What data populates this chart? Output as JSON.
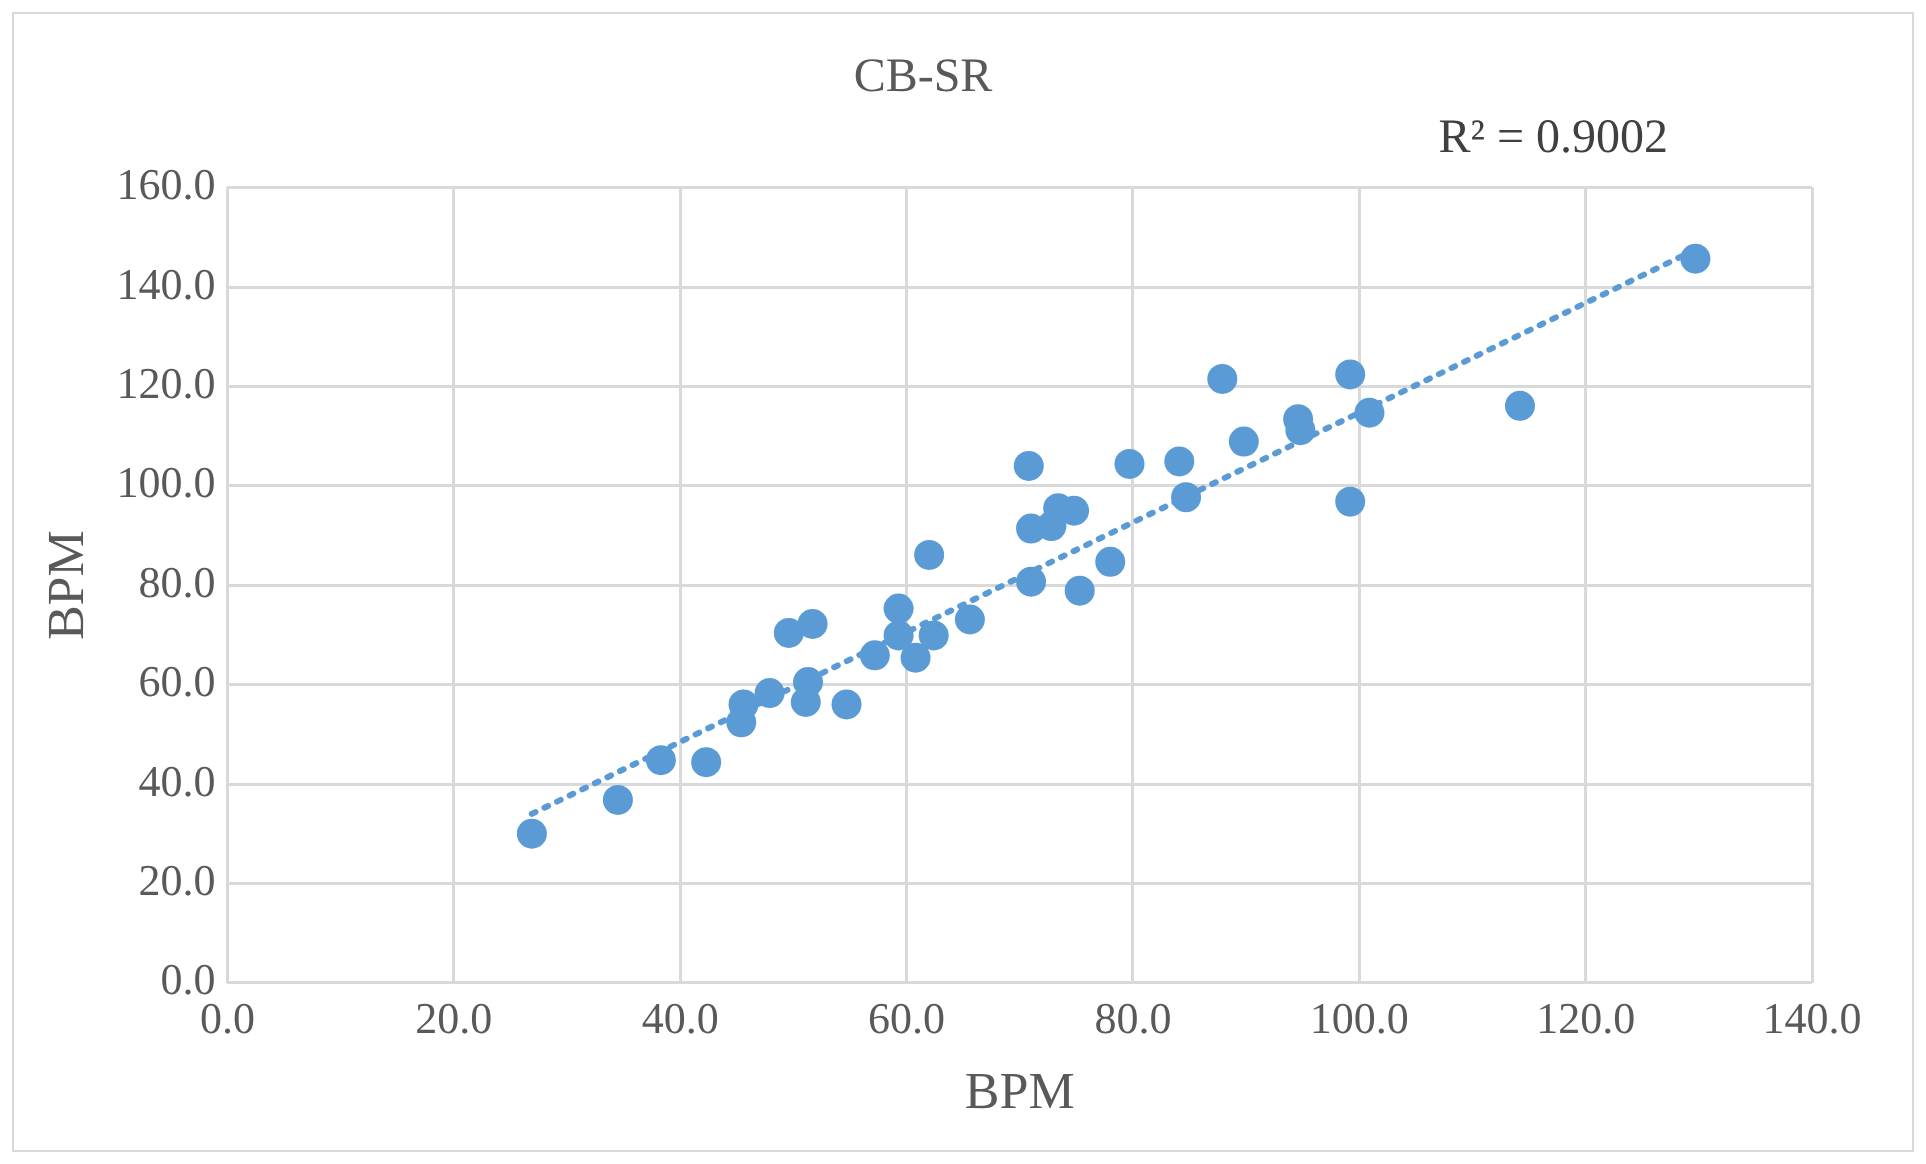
{
  "chart_data": {
    "type": "scatter",
    "title": "CB-SR",
    "xlabel": "BPM",
    "ylabel": "BPM",
    "annotations": [
      "R² = 0.9002"
    ],
    "xlim": [
      0,
      140
    ],
    "ylim": [
      0,
      160
    ],
    "xticks": [
      {
        "value": 0,
        "label": "0.0"
      },
      {
        "value": 20,
        "label": "20.0"
      },
      {
        "value": 40,
        "label": "40.0"
      },
      {
        "value": 60,
        "label": "60.0"
      },
      {
        "value": 80,
        "label": "80.0"
      },
      {
        "value": 100,
        "label": "100.0"
      },
      {
        "value": 120,
        "label": "120.0"
      },
      {
        "value": 140,
        "label": "140.0"
      }
    ],
    "yticks": [
      {
        "value": 0,
        "label": "0.0"
      },
      {
        "value": 20,
        "label": "20.0"
      },
      {
        "value": 40,
        "label": "40.0"
      },
      {
        "value": 60,
        "label": "60.0"
      },
      {
        "value": 80,
        "label": "80.0"
      },
      {
        "value": 100,
        "label": "100.0"
      },
      {
        "value": 120,
        "label": "120.0"
      },
      {
        "value": 140,
        "label": "140.0"
      },
      {
        "value": 160,
        "label": "160.0"
      }
    ],
    "grid": true,
    "legend": false,
    "marker": "circle",
    "series": [
      {
        "color": "#5b9bd5",
        "x": [
          26.9,
          34.5,
          38.3,
          42.3,
          45.4,
          45.6,
          47.9,
          49.6,
          51.7,
          51.3,
          51.1,
          54.7,
          57.2,
          59.3,
          59.3,
          60.8,
          62.0,
          62.4,
          65.6,
          70.8,
          71.0,
          71.0,
          72.8,
          73.4,
          74.8,
          75.3,
          78.0,
          79.7,
          84.1,
          84.7,
          87.9,
          89.8,
          94.6,
          94.8,
          99.2,
          99.2,
          100.9,
          114.2,
          129.7
        ],
        "values": [
          30.0,
          36.8,
          44.8,
          44.4,
          52.4,
          56.0,
          58.3,
          70.4,
          72.2,
          60.5,
          56.5,
          56.0,
          65.9,
          75.3,
          69.9,
          65.4,
          86.1,
          69.9,
          73.1,
          104.0,
          91.4,
          80.7,
          91.9,
          95.5,
          95.0,
          78.9,
          84.7,
          104.4,
          104.9,
          97.7,
          121.5,
          108.9,
          113.4,
          111.2,
          122.4,
          96.8,
          114.7,
          116.1,
          145.7
        ]
      },
      {
        "type": "line",
        "color": "#5b9bd5",
        "line_style": "dotted",
        "marker": "none",
        "x": [
          26.9,
          129.7
        ],
        "values": [
          34.0,
          147.5
        ]
      }
    ]
  }
}
